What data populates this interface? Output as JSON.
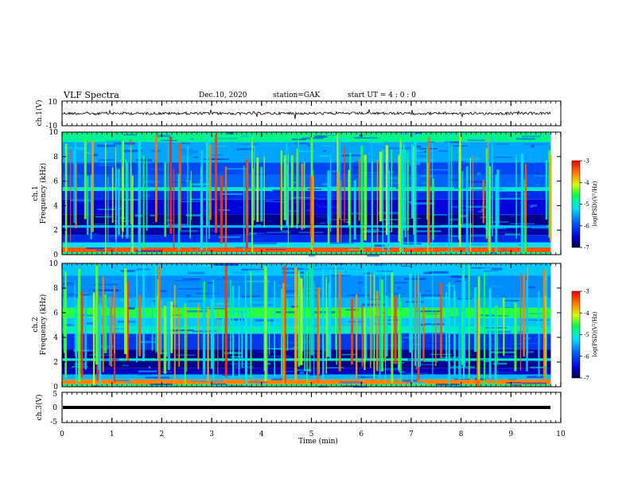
{
  "header": {
    "title": "VLF Spectra",
    "date": "Dec.10, 2020",
    "station": "station=GAK",
    "start": "start UT =  4 : 0 : 0"
  },
  "chart_data": [
    {
      "type": "line",
      "panel": "ch1-waveform",
      "ylabel": "ch.1(V)",
      "yticks": [
        "10",
        "-10"
      ],
      "ylim": [
        -10,
        10
      ],
      "mean_value": 0,
      "color": "#000000"
    },
    {
      "type": "heatmap",
      "panel": "ch1-spectrogram",
      "ylabel_line1": "ch.1",
      "ylabel_line2": "Frequency (kHz)",
      "yticks": [
        "0",
        "2",
        "4",
        "6",
        "8",
        "10"
      ],
      "ylim_khz": [
        0,
        10
      ],
      "bands_khz": [
        {
          "from": 0.0,
          "to": 0.2,
          "level": 0.55
        },
        {
          "from": 0.2,
          "to": 0.6,
          "level": 0.9
        },
        {
          "from": 0.6,
          "to": 1.0,
          "level": 0.45
        },
        {
          "from": 1.0,
          "to": 1.6,
          "level": 0.2
        },
        {
          "from": 1.6,
          "to": 2.2,
          "level": 0.08
        },
        {
          "from": 2.2,
          "to": 2.4,
          "level": 0.4
        },
        {
          "from": 2.4,
          "to": 3.3,
          "level": 0.06
        },
        {
          "from": 3.3,
          "to": 4.5,
          "level": 0.12
        },
        {
          "from": 4.5,
          "to": 5.2,
          "level": 0.2
        },
        {
          "from": 5.2,
          "to": 5.5,
          "level": 0.5
        },
        {
          "from": 5.5,
          "to": 6.5,
          "level": 0.3
        },
        {
          "from": 6.5,
          "to": 7.5,
          "level": 0.25
        },
        {
          "from": 7.5,
          "to": 9.2,
          "level": 0.38
        },
        {
          "from": 9.2,
          "to": 10.0,
          "level": 0.55
        }
      ],
      "colorbar_label": "log(PSD)(V²/Hz)",
      "colorbar_ticks": [
        "-3",
        "-4",
        "-5",
        "-6",
        "-7"
      ],
      "colorbar_range": [
        -7,
        -3
      ]
    },
    {
      "type": "heatmap",
      "panel": "ch2-spectrogram",
      "ylabel_line1": "ch.2",
      "ylabel_line2": "Frequency (kHz)",
      "yticks": [
        "0",
        "2",
        "4",
        "6",
        "8",
        "10"
      ],
      "ylim_khz": [
        0,
        10
      ],
      "bands_khz": [
        {
          "from": 0.0,
          "to": 0.2,
          "level": 0.55
        },
        {
          "from": 0.2,
          "to": 0.6,
          "level": 0.85
        },
        {
          "from": 0.6,
          "to": 1.0,
          "level": 0.4
        },
        {
          "from": 1.0,
          "to": 1.5,
          "level": 0.1
        },
        {
          "from": 1.5,
          "to": 2.1,
          "level": 0.06
        },
        {
          "from": 2.1,
          "to": 2.3,
          "level": 0.5
        },
        {
          "from": 2.3,
          "to": 3.0,
          "level": 0.06
        },
        {
          "from": 3.0,
          "to": 4.3,
          "level": 0.22
        },
        {
          "from": 4.3,
          "to": 4.9,
          "level": 0.5
        },
        {
          "from": 4.9,
          "to": 5.6,
          "level": 0.42
        },
        {
          "from": 5.6,
          "to": 6.4,
          "level": 0.62
        },
        {
          "from": 6.4,
          "to": 7.2,
          "level": 0.4
        },
        {
          "from": 7.2,
          "to": 9.0,
          "level": 0.35
        },
        {
          "from": 9.0,
          "to": 10.0,
          "level": 0.42
        }
      ],
      "colorbar_label": "log(PSD)(V²/Hz)",
      "colorbar_ticks": [
        "-3",
        "-4",
        "-5",
        "-6",
        "-7"
      ],
      "colorbar_range": [
        -7,
        -3
      ]
    },
    {
      "type": "line",
      "panel": "ch3-waveform",
      "ylabel": "ch.3(V)",
      "yticks": [
        "5",
        "0",
        "-5"
      ],
      "ylim": [
        -5,
        5
      ],
      "mean_value": 0,
      "color": "#000000"
    }
  ],
  "xaxis": {
    "label": "Time (min)",
    "ticks": [
      "0",
      "1",
      "2",
      "3",
      "4",
      "5",
      "6",
      "7",
      "8",
      "9",
      "10"
    ],
    "xlim": [
      0,
      10
    ],
    "data_end_min": 9.8
  }
}
